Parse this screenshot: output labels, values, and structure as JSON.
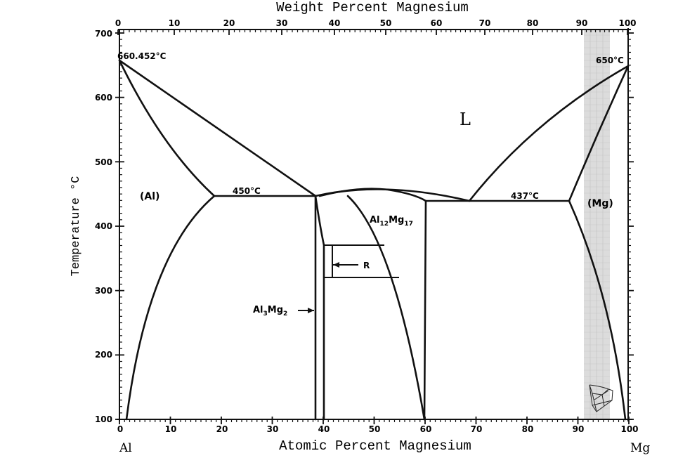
{
  "figure": {
    "title_top": "Weight Percent Magnesium",
    "xlabel_bottom": "Atomic Percent Magnesium",
    "ylabel": "Temperature °C",
    "left_element": "Al",
    "right_element": "Mg",
    "highlight_band_color": "#d9d9d9"
  },
  "axes": {
    "bottom_ticks": [
      "0",
      "10",
      "20",
      "30",
      "40",
      "50",
      "60",
      "70",
      "80",
      "90",
      "100"
    ],
    "top_ticks": [
      "0",
      "10",
      "20",
      "30",
      "40",
      "50",
      "60",
      "70",
      "80",
      "90",
      "100"
    ],
    "y_ticks": [
      "100",
      "200",
      "300",
      "400",
      "500",
      "600",
      "700"
    ]
  },
  "labels": {
    "al_melting": "660.452°C",
    "mg_melting": "650°C",
    "eutectic_left": "450°C",
    "eutectic_right": "437°C",
    "liquid": "L",
    "al_phase": "(Al)",
    "mg_phase": "(Mg)",
    "al12mg17_base1": "Al",
    "al12mg17_sub1": "12",
    "al12mg17_base2": "Mg",
    "al12mg17_sub2": "17",
    "al3mg2_base1": "Al",
    "al3mg2_sub1": "3",
    "al3mg2_base2": "Mg",
    "al3mg2_sub2": "2",
    "r_phase": "R"
  },
  "chart_data": {
    "type": "phase_diagram",
    "system": "Al-Mg",
    "title": "Weight Percent Magnesium",
    "xlabel": "Atomic Percent Magnesium",
    "ylabel": "Temperature °C",
    "xlim": [
      0,
      100
    ],
    "ylim": [
      100,
      700
    ],
    "secondary_xaxis": "Weight Percent Magnesium",
    "invariants": [
      {
        "type": "melting_point",
        "element": "Al",
        "at_pct_Mg": 0,
        "T": 660.452
      },
      {
        "type": "melting_point",
        "element": "Mg",
        "at_pct_Mg": 100,
        "T": 650
      },
      {
        "type": "eutectic",
        "T": 450,
        "range_at_pct": [
          18.5,
          38.5
        ]
      },
      {
        "type": "eutectic",
        "T": 437,
        "range_at_pct": [
          59,
          88
        ]
      },
      {
        "type": "congruent_max",
        "phase": "Al12Mg17",
        "at_pct_Mg": 52,
        "T": 458
      }
    ],
    "phases": [
      "L",
      "(Al)",
      "Al3Mg2",
      "R",
      "Al12Mg17",
      "(Mg)"
    ],
    "boundaries": {
      "al_liquidus": [
        [
          0,
          660.452
        ],
        [
          10,
          560
        ],
        [
          18.5,
          450
        ],
        [
          38.5,
          450
        ]
      ],
      "al_solidus": [
        [
          0,
          660.452
        ],
        [
          5,
          590
        ],
        [
          10,
          520
        ],
        [
          18.5,
          450
        ]
      ],
      "al_solvus": [
        [
          18.5,
          450
        ],
        [
          10,
          375
        ],
        [
          5,
          275
        ],
        [
          1,
          100
        ]
      ],
      "mg_liquidus": [
        [
          100,
          650
        ],
        [
          90,
          600
        ],
        [
          69,
          437
        ]
      ],
      "mg_solidus": [
        [
          100,
          650
        ],
        [
          96,
          550
        ],
        [
          88,
          437
        ]
      ],
      "mg_solvus": [
        [
          88,
          437
        ],
        [
          94,
          330
        ],
        [
          99,
          100
        ]
      ],
      "R_phase_T_range": [
        320,
        370
      ]
    }
  }
}
